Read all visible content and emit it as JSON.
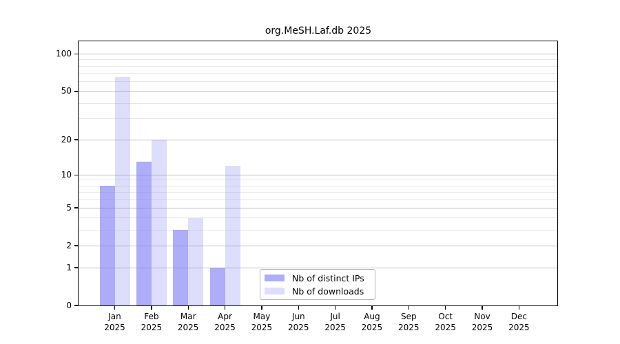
{
  "chart_data": {
    "type": "bar",
    "title": "org.MeSH.Laf.db 2025",
    "x_months": [
      "Jan",
      "Feb",
      "Mar",
      "Apr",
      "May",
      "Jun",
      "Jul",
      "Aug",
      "Sep",
      "Oct",
      "Nov",
      "Dec"
    ],
    "x_year": "2025",
    "series": [
      {
        "name": "Nb of distinct IPs",
        "color": "#7a7af5",
        "alpha": 0.62,
        "values": [
          8,
          13,
          3,
          1,
          0,
          0,
          0,
          0,
          0,
          0,
          0,
          0
        ]
      },
      {
        "name": "Nb of downloads",
        "color": "#7a7af5",
        "alpha": 0.26,
        "values": [
          65,
          20,
          4,
          12,
          0,
          0,
          0,
          0,
          0,
          0,
          0,
          0
        ]
      }
    ],
    "y_scale": "log10(1+x)",
    "y_ticks": [
      0,
      1,
      2,
      5,
      10,
      20,
      50,
      100
    ],
    "y_minor_gridlines": [
      3,
      4,
      6,
      7,
      8,
      9,
      30,
      40,
      60,
      70,
      80,
      90
    ],
    "ylim": [
      0,
      127
    ],
    "grid": true,
    "legend_position": "lower-center-inside",
    "colors": {
      "major_grid": "#c0c0c0",
      "minor_grid": "#e8e8e8",
      "axis": "#000000",
      "background": "#ffffff"
    }
  }
}
